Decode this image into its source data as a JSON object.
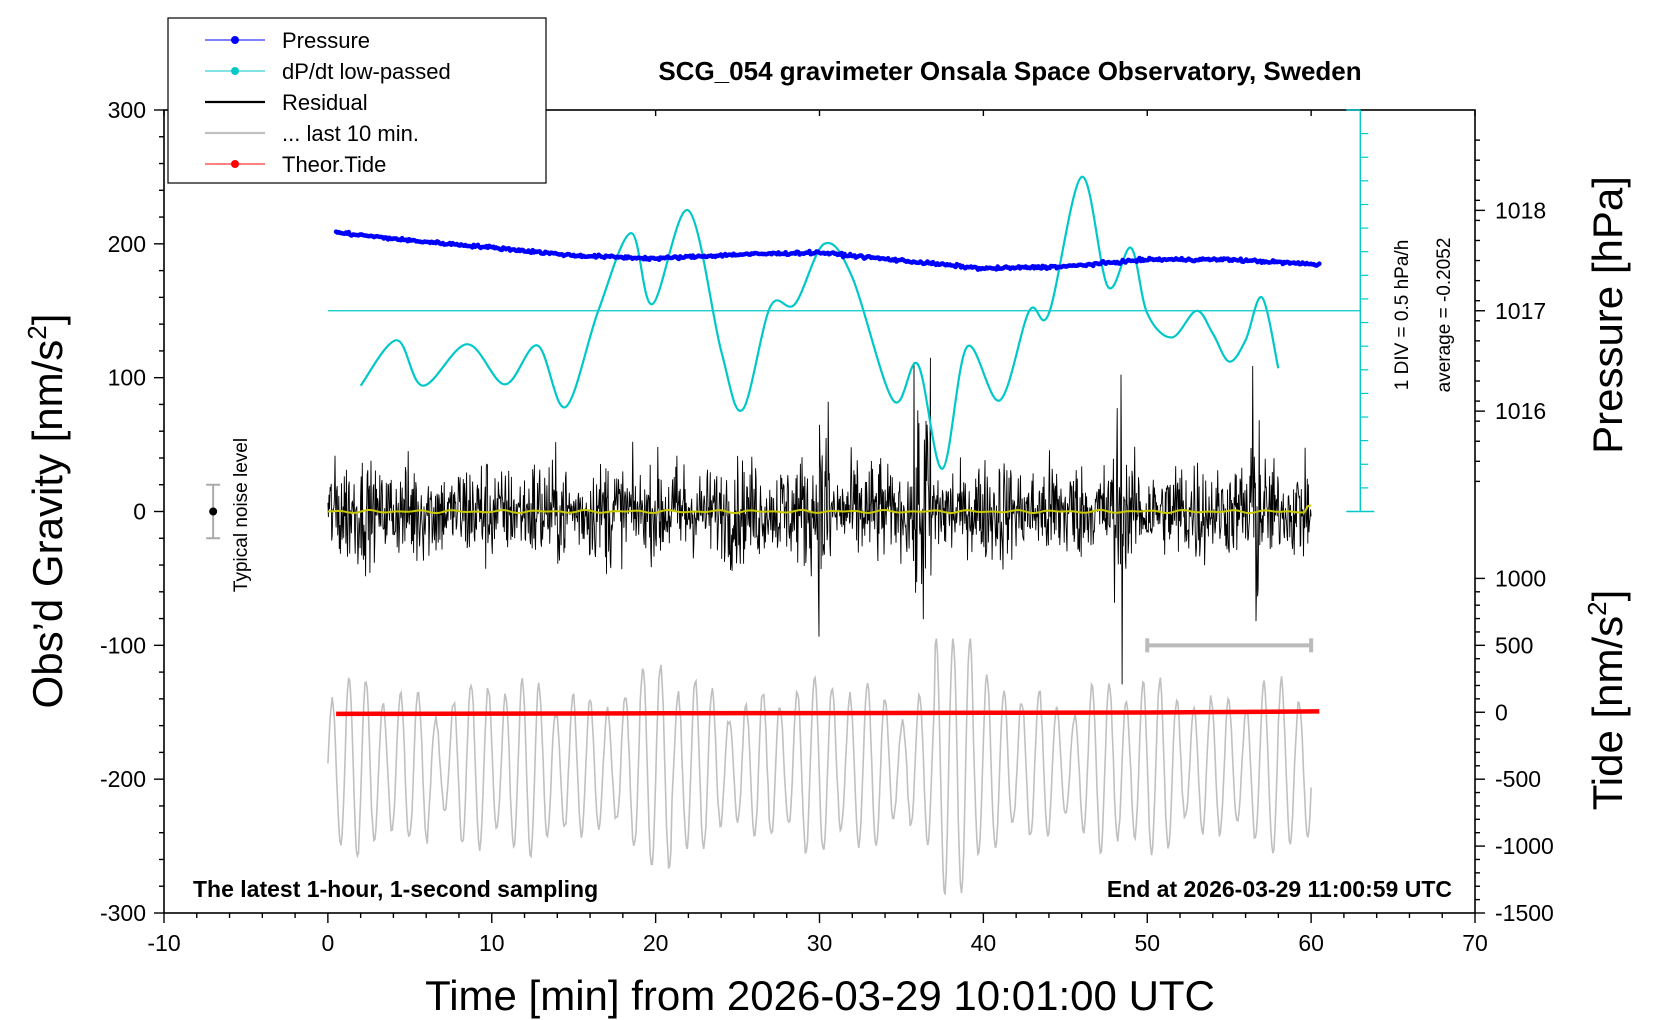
{
  "chart_data": {
    "type": "line",
    "title": "SCG_054 gravimeter Onsala Space Observatory, Sweden",
    "xlabel": "Time [min] from 2026-03-29 10:01:00 UTC",
    "ylabel": "Obs’d Gravity [nm/s",
    "ylabel_sup": "2",
    "ylabel_end": "]",
    "right_top_label": "Pressure [hPa]",
    "right_bottom_label": "Tide [nm/s",
    "right_bottom_sup": "2",
    "right_bottom_end": "]",
    "xlim": [
      -10,
      70
    ],
    "ylim": [
      -300,
      300
    ],
    "x_ticks": [
      "-10",
      "0",
      "10",
      "20",
      "30",
      "40",
      "50",
      "60",
      "70"
    ],
    "y_ticks": [
      "300",
      "200",
      "100",
      "0",
      "-100",
      "-200",
      "-300"
    ],
    "pressure_ticks": [
      "1018",
      "1017",
      "1016"
    ],
    "tide_ticks": [
      "1000",
      "500",
      "0",
      "-500",
      "-1000",
      "-1500"
    ],
    "note_left": "The latest 1-hour, 1-second sampling",
    "note_right": "End at 2026-03-29 11:00:59 UTC",
    "noise_label": "Typical noise level",
    "dpdt_scale": "1 DIV = 0.5 hPa/h",
    "dpdt_average": "average = -0.2052",
    "legend": [
      {
        "label": "Pressure",
        "color": "#0000ff",
        "marker": true
      },
      {
        "label": "dP/dt low-passed",
        "color": "#00c8c8",
        "marker": true
      },
      {
        "label": "Residual",
        "color": "#000000",
        "marker": false
      },
      {
        "label": "... last 10 min.",
        "color": "#c0c0c0",
        "marker": false
      },
      {
        "label": "Theor.Tide",
        "color": "#ff0000",
        "marker": true
      }
    ],
    "series": [
      {
        "name": "Pressure",
        "color": "#0000ff",
        "axis": "pressure_hPa",
        "x": [
          0.5,
          5,
          10,
          15,
          20,
          25,
          30,
          35,
          40,
          45,
          50,
          55,
          60.5
        ],
        "y": [
          1017.78,
          1017.7,
          1017.63,
          1017.55,
          1017.52,
          1017.56,
          1017.58,
          1017.5,
          1017.42,
          1017.44,
          1017.51,
          1017.51,
          1017.46
        ]
      },
      {
        "name": "dP/dt low-passed",
        "color": "#00c8c8",
        "axis": "gravity_scaled",
        "x": [
          2,
          4.2,
          5.8,
          8.5,
          10.8,
          12.8,
          14.5,
          16.5,
          18.5,
          19.8,
          22,
          24,
          25.3,
          27,
          28.5,
          30.3,
          32,
          34.5,
          36,
          37.5,
          39,
          41,
          42.8,
          44,
          46,
          47.6,
          49,
          50,
          51.5,
          53,
          54,
          55,
          56,
          57,
          58
        ],
        "y": [
          94,
          128,
          94,
          125,
          95,
          124,
          78,
          150,
          208,
          155,
          225,
          120,
          76,
          153,
          155,
          200,
          175,
          83,
          110,
          32,
          123,
          83,
          150,
          148,
          250,
          168,
          197,
          148,
          130,
          150,
          133,
          112,
          128,
          160,
          107
        ]
      },
      {
        "name": "Residual",
        "color": "#000000",
        "axis": "gravity",
        "x": [
          0,
          60
        ],
        "y_mean": 0,
        "y_typical_amplitude": 40,
        "y_range": [
          -130,
          143
        ]
      },
      {
        "name": "Residual low-passed",
        "color": "#c8c800",
        "axis": "gravity",
        "x": [
          0,
          60
        ],
        "y": [
          0,
          0
        ]
      },
      {
        "name": "... last 10 min.",
        "color": "#c0c0c0",
        "axis": "gravity_offset",
        "x": [
          0,
          60
        ],
        "y_range": [
          -290,
          -95
        ]
      },
      {
        "name": "Theor.Tide",
        "color": "#ff0000",
        "axis": "tide_nm_s2",
        "x": [
          0.5,
          10,
          20,
          30,
          40,
          50,
          60.5
        ],
        "y": [
          -12,
          -10,
          -8,
          -6,
          -4,
          -2,
          6
        ]
      }
    ],
    "noise_bar": {
      "x": -7,
      "y_center": 0,
      "y_half": 20
    },
    "last10_bar": {
      "x_start": 50,
      "x_end": 60
    }
  }
}
